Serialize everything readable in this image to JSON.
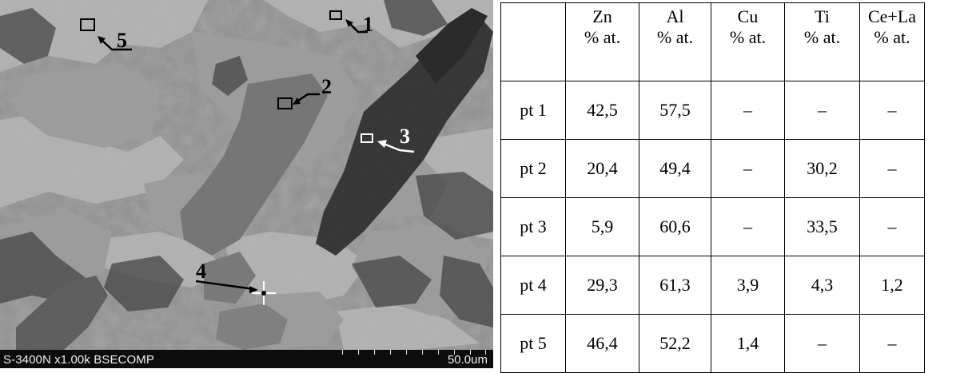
{
  "figure": {
    "sem_info": "S-3400N x1.00k BSECOMP",
    "scale_label": "50.0um",
    "points": [
      "1",
      "2",
      "3",
      "4",
      "5"
    ]
  },
  "table": {
    "headers": [
      {
        "element": "",
        "unit": ""
      },
      {
        "element": "Zn",
        "unit": "% at."
      },
      {
        "element": "Al",
        "unit": "% at."
      },
      {
        "element": "Cu",
        "unit": "% at."
      },
      {
        "element": "Ti",
        "unit": "% at."
      },
      {
        "element": "Ce+La",
        "unit": "% at."
      }
    ],
    "rows": [
      [
        "pt 1",
        "42,5",
        "57,5",
        "–",
        "–",
        "–"
      ],
      [
        "pt 2",
        "20,4",
        "49,4",
        "–",
        "30,2",
        "–"
      ],
      [
        "pt 3",
        "5,9",
        "60,6",
        "–",
        "33,5",
        "–"
      ],
      [
        "pt 4",
        "29,3",
        "61,3",
        "3,9",
        "4,3",
        "1,2"
      ],
      [
        "pt 5",
        "46,4",
        "52,2",
        "1,4",
        "–",
        "–"
      ]
    ]
  }
}
